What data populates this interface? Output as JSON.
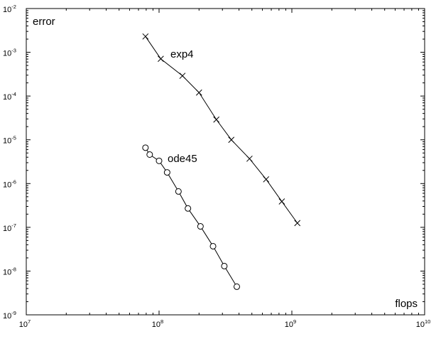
{
  "chart_data": {
    "type": "line",
    "title": "",
    "xlabel": "flops",
    "ylabel": "error",
    "x_scale": "log",
    "y_scale": "log",
    "xlim": [
      10000000.0,
      10000000000.0
    ],
    "ylim": [
      1e-09,
      0.01
    ],
    "x_ticks": [
      {
        "base": "10",
        "exp": "7",
        "value": 10000000.0
      },
      {
        "base": "10",
        "exp": "8",
        "value": 100000000.0
      },
      {
        "base": "10",
        "exp": "9",
        "value": 1000000000.0
      },
      {
        "base": "10",
        "exp": "10",
        "value": 10000000000.0
      }
    ],
    "y_ticks": [
      {
        "base": "10",
        "exp": "-2",
        "value": 0.01
      },
      {
        "base": "10",
        "exp": "-3",
        "value": 0.001
      },
      {
        "base": "10",
        "exp": "-4",
        "value": 0.0001
      },
      {
        "base": "10",
        "exp": "-5",
        "value": 1e-05
      },
      {
        "base": "10",
        "exp": "-6",
        "value": 1e-06
      },
      {
        "base": "10",
        "exp": "-7",
        "value": 1e-07
      },
      {
        "base": "10",
        "exp": "-8",
        "value": 1e-08
      },
      {
        "base": "10",
        "exp": "-9",
        "value": 1e-09
      }
    ],
    "grid": false,
    "series": [
      {
        "name": "exp4",
        "marker": "x",
        "color": "#000000",
        "points": [
          [
            79000000.0,
            0.0023
          ],
          [
            103000000.0,
            0.00071
          ],
          [
            150000000.0,
            0.00029
          ],
          [
            200000000.0,
            0.00012
          ],
          [
            270000000.0,
            2.9e-05
          ],
          [
            350000000.0,
            1e-05
          ],
          [
            480000000.0,
            3.7e-06
          ],
          [
            640000000.0,
            1.25e-06
          ],
          [
            840000000.0,
            3.9e-07
          ],
          [
            1100000000.0,
            1.25e-07
          ]
        ]
      },
      {
        "name": "ode45",
        "marker": "o",
        "color": "#000000",
        "points": [
          [
            79000000.0,
            6.6e-06
          ],
          [
            85000000.0,
            4.6e-06
          ],
          [
            100000000.0,
            3.3e-06
          ],
          [
            115000000.0,
            1.8e-06
          ],
          [
            140000000.0,
            6.6e-07
          ],
          [
            165000000.0,
            2.7e-07
          ],
          [
            205000000.0,
            1.05e-07
          ],
          [
            255000000.0,
            3.7e-08
          ],
          [
            310000000.0,
            1.3e-08
          ],
          [
            385000000.0,
            4.4e-09
          ]
        ]
      }
    ]
  }
}
